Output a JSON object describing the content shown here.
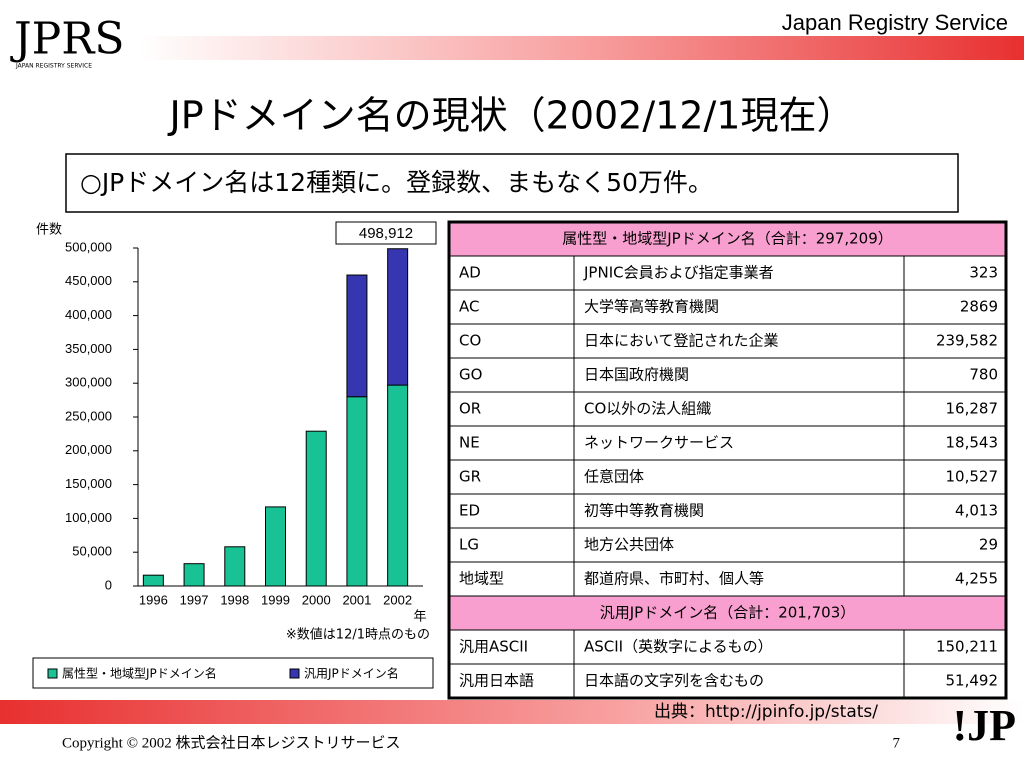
{
  "header": {
    "logo": "JPRS",
    "logo_sub": "JAPAN REGISTRY SERVICE",
    "brand": "Japan Registry Service"
  },
  "title": "JPドメイン名の現状（2002/12/1現在）",
  "summary": "○JPドメイン名は12種類に。登録数、まもなく50万件。",
  "chart_data": {
    "type": "bar",
    "stacked": true,
    "y_label": "件数",
    "x_label": "年",
    "annotation": "498,912",
    "note": "※数値は12/1時点のもの",
    "categories": [
      "1996",
      "1997",
      "1998",
      "1999",
      "2000",
      "2001",
      "2002"
    ],
    "series": [
      {
        "name": "属性型・地域型JPドメイン名",
        "color": "#19c294",
        "values": [
          16000,
          33000,
          58000,
          117000,
          229000,
          280000,
          297209
        ]
      },
      {
        "name": "汎用JPドメイン名",
        "color": "#3636b0",
        "values": [
          null,
          null,
          null,
          null,
          null,
          180000,
          201703
        ]
      }
    ],
    "ylim": [
      0,
      500000
    ],
    "yticks": [
      0,
      {
        "value": 50000,
        "label": "50,000"
      },
      {
        "value": 100000,
        "label": "100,000"
      },
      {
        "value": 150000,
        "label": "150,000"
      },
      {
        "value": 200000,
        "label": "200,000"
      },
      {
        "value": 250000,
        "label": "250,000"
      },
      {
        "value": 300000,
        "label": "300,000"
      },
      {
        "value": 350000,
        "label": "350,000"
      },
      {
        "value": 400000,
        "label": "400,000"
      },
      {
        "value": 450000,
        "label": "450,000"
      },
      {
        "value": 500000,
        "label": "500,000"
      }
    ]
  },
  "table": {
    "sections": [
      {
        "heading": "属性型・地域型JPドメイン名（合計：297,209）",
        "rows": [
          [
            "AD",
            "JPNIC会員および指定事業者",
            "323"
          ],
          [
            "AC",
            "大学等高等教育機関",
            "2869"
          ],
          [
            "CO",
            "日本において登記された企業",
            "239,582"
          ],
          [
            "GO",
            "日本国政府機関",
            "780"
          ],
          [
            "OR",
            "CO以外の法人組織",
            "16,287"
          ],
          [
            "NE",
            "ネットワークサービス",
            "18,543"
          ],
          [
            "GR",
            "任意団体",
            "10,527"
          ],
          [
            "ED",
            "初等中等教育機関",
            "4,013"
          ],
          [
            "LG",
            "地方公共団体",
            "29"
          ],
          [
            "地域型",
            "都道府県、市町村、個人等",
            "4,255"
          ]
        ]
      },
      {
        "heading": "汎用JPドメイン名（合計：201,703）",
        "rows": [
          [
            "汎用ASCII",
            "ASCII（英数字によるもの）",
            "150,211"
          ],
          [
            "汎用日本語",
            "日本語の文字列を含むもの",
            "51,492"
          ]
        ]
      }
    ]
  },
  "source": "出典：http://jpinfo.jp/stats/",
  "footer": {
    "copyright": "Copyright © 2002 株式会社日本レジストリサービス",
    "page": "7",
    "logo": "!JP"
  }
}
